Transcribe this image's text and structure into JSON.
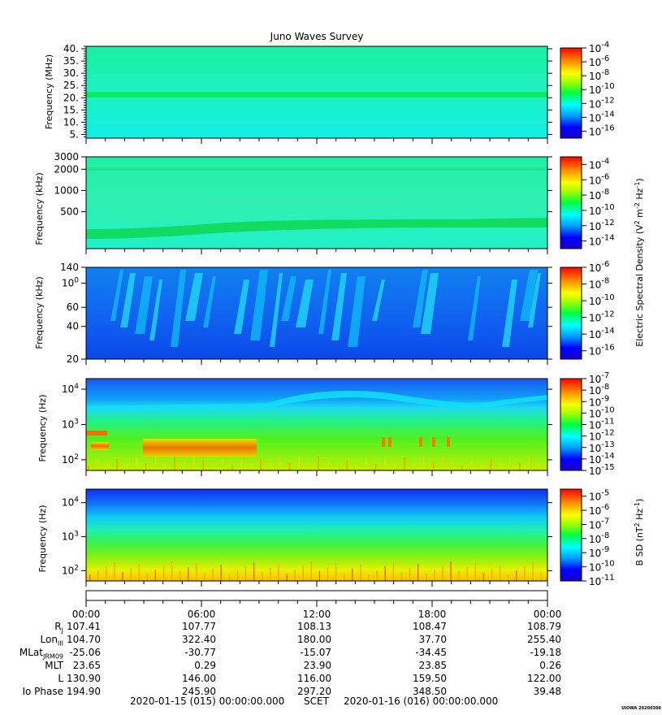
{
  "chart_data": {
    "type": "heatmap",
    "title": "Juno Waves Survey",
    "panels": [
      {
        "ylabel": "Frequency (MHz)",
        "yscale": "linear",
        "ylim": [
          3.5,
          41
        ],
        "yticks": [
          "5.",
          "10.",
          "15.",
          "20.",
          "25.",
          "30.",
          "35.",
          "40."
        ],
        "ytick_values": [
          5,
          10,
          15,
          20,
          25,
          30,
          35,
          40
        ],
        "colorbar": {
          "scale": "log",
          "range": [
            -17,
            -4
          ],
          "ticks": [
            "10-4",
            "10-6",
            "10-8",
            "10-10",
            "10-12",
            "10-14",
            "10-16"
          ],
          "tick_exponents": [
            -4,
            -6,
            -8,
            -10,
            -12,
            -14,
            -16
          ]
        },
        "features": [
          {
            "kind": "band",
            "center": 21,
            "label": ""
          }
        ]
      },
      {
        "ylabel": "Frequency (kHz)",
        "yscale": "log",
        "ylim": [
          150,
          3000
        ],
        "yticks": [
          "3000",
          "2000",
          "1000",
          "500"
        ],
        "ytick_values": [
          3000,
          2000,
          1000,
          500
        ],
        "colorbar": {
          "scale": "log",
          "range": [
            -15,
            -3
          ],
          "ticks": [
            "10-4",
            "10-6",
            "10-8",
            "10-10",
            "10-12",
            "10-14"
          ],
          "tick_exponents": [
            -4,
            -6,
            -8,
            -10,
            -12,
            -14
          ]
        }
      },
      {
        "ylabel": "Frequency (kHz)",
        "yscale": "log",
        "ylim": [
          20,
          140
        ],
        "yticks": [
          "140",
          "100",
          "60",
          "40",
          "20"
        ],
        "ytick_values": [
          140,
          100,
          60,
          40,
          20
        ],
        "colorbar": {
          "scale": "log",
          "range": [
            -17,
            -6
          ],
          "ticks": [
            "10-6",
            "10-8",
            "10-10",
            "10-12",
            "10-14",
            "10-16"
          ],
          "tick_exponents": [
            -6,
            -8,
            -10,
            -12,
            -14,
            -16
          ]
        }
      },
      {
        "ylabel": "Frequency (Hz)",
        "yscale": "log",
        "ylim": [
          50,
          20000
        ],
        "yticks": [
          "104",
          "103",
          "102"
        ],
        "ytick_values": [
          10000,
          1000,
          100
        ],
        "colorbar": {
          "scale": "log",
          "range": [
            -15,
            -7
          ],
          "ticks": [
            "10-7",
            "10-8",
            "10-9",
            "10-10",
            "10-11",
            "10-12",
            "10-13",
            "10-14",
            "10-15"
          ],
          "tick_exponents": [
            -7,
            -8,
            -9,
            -10,
            -11,
            -12,
            -13,
            -14,
            -15
          ]
        }
      },
      {
        "ylabel": "Frequency (Hz)",
        "yscale": "log",
        "ylim": [
          50,
          25000
        ],
        "yticks": [
          "104",
          "103",
          "102"
        ],
        "ytick_values": [
          10000,
          1000,
          100
        ],
        "colorbar": {
          "scale": "log",
          "range": [
            -11,
            -4.5
          ],
          "ticks": [
            "10-5",
            "10-6",
            "10-7",
            "10-8",
            "10-9",
            "10-10",
            "10-11"
          ],
          "tick_exponents": [
            -5,
            -6,
            -7,
            -8,
            -9,
            -10,
            -11
          ]
        }
      }
    ],
    "colorbar_labels": {
      "electric": "Electric Spectral Density (V2 m-2 Hz-1)",
      "magnetic": "B SD (nT2 Hz-1)"
    },
    "x_ticks": [
      "00:00",
      "06:00",
      "12:00",
      "18:00",
      "00:00"
    ],
    "ephemeris": [
      {
        "label": "RJ",
        "values": [
          "107.41",
          "107.77",
          "108.13",
          "108.47",
          "108.79"
        ]
      },
      {
        "label": "LonIII",
        "values": [
          "104.70",
          "322.40",
          "180.00",
          "37.70",
          "255.40"
        ]
      },
      {
        "label": "MLatJRM09",
        "values": [
          "-25.06",
          "-30.77",
          "-15.07",
          "-34.45",
          "-19.18"
        ]
      },
      {
        "label": "MLT",
        "values": [
          "23.65",
          "0.29",
          "23.90",
          "23.85",
          "0.26"
        ]
      },
      {
        "label": "L",
        "values": [
          "130.90",
          "146.00",
          "116.00",
          "159.50",
          "122.00"
        ]
      },
      {
        "label": "Io Phase",
        "values": [
          "194.90",
          "245.90",
          "297.20",
          "348.50",
          "39.48"
        ]
      }
    ],
    "time_range": {
      "start": "2020-01-15 (015) 00:00:00.000",
      "mid": "SCET",
      "end": "2020-01-16 (016) 00:00:00.000"
    },
    "footer": "UIOWA 20200306"
  }
}
